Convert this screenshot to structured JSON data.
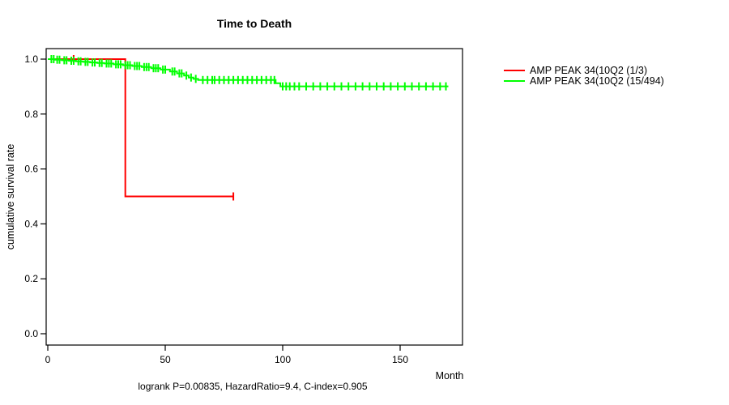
{
  "chart": {
    "title": "Time to Death",
    "xlabel": "Month",
    "ylabel": "cumulative survival rate",
    "stats_caption": "logrank P=0.00835, HazardRatio=9.4, C-index=0.905"
  },
  "legend": {
    "items": [
      {
        "label": "AMP PEAK 34(10Q2 (1/3)",
        "color": "#ff0000"
      },
      {
        "label": "AMP PEAK 34(10Q2 (15/494)",
        "color": "#00ff00"
      }
    ]
  },
  "chart_data": {
    "type": "line",
    "subtype": "kaplan-meier-step",
    "title": "Time to Death",
    "xlabel": "Month",
    "ylabel": "cumulative survival rate",
    "xlim": [
      0,
      177
    ],
    "ylim": [
      0.0,
      1.0
    ],
    "x_ticks": [
      0,
      50,
      100,
      150
    ],
    "x_tick_labels": [
      "0",
      "50",
      "100",
      "150"
    ],
    "y_ticks": [
      1.0,
      0.8,
      0.6,
      0.4,
      0.2,
      0.0
    ],
    "y_tick_labels": [
      "1.0",
      "0.8",
      "0.6",
      "0.4",
      "0.2",
      "0.0"
    ],
    "grid": false,
    "legend_position": "right-outside",
    "annotation": "logrank P=0.00835, HazardRatio=9.4, C-index=0.905",
    "series": [
      {
        "name": "AMP PEAK 34(10Q2 (1/3)",
        "events": "1/3",
        "color": "#ff0000",
        "steps": [
          [
            0,
            1.0
          ],
          [
            33,
            1.0
          ],
          [
            33,
            0.5
          ],
          [
            79,
            0.5
          ]
        ],
        "censors": [
          [
            11,
            1.0
          ],
          [
            79,
            0.5
          ]
        ]
      },
      {
        "name": "AMP PEAK 34(10Q2 (15/494)",
        "events": "15/494",
        "color": "#00ff00",
        "steps": [
          [
            0,
            1.0
          ],
          [
            3,
            0.998
          ],
          [
            6,
            0.996
          ],
          [
            9,
            0.994
          ],
          [
            12,
            0.992
          ],
          [
            15,
            0.99
          ],
          [
            18,
            0.988
          ],
          [
            21,
            0.986
          ],
          [
            24,
            0.984
          ],
          [
            28,
            0.981
          ],
          [
            32,
            0.978
          ],
          [
            36,
            0.975
          ],
          [
            40,
            0.971
          ],
          [
            44,
            0.967
          ],
          [
            48,
            0.962
          ],
          [
            52,
            0.955
          ],
          [
            55,
            0.948
          ],
          [
            58,
            0.94
          ],
          [
            60,
            0.933
          ],
          [
            62,
            0.928
          ],
          [
            64,
            0.924
          ],
          [
            97,
            0.912
          ],
          [
            99,
            0.901
          ],
          [
            170.5,
            0.901
          ]
        ],
        "censors": [
          [
            1.5,
            1.0
          ],
          [
            2.5,
            1.0
          ],
          [
            4,
            0.998
          ],
          [
            5,
            0.998
          ],
          [
            7,
            0.996
          ],
          [
            8,
            0.996
          ],
          [
            10,
            0.994
          ],
          [
            11,
            0.994
          ],
          [
            13,
            0.992
          ],
          [
            14,
            0.992
          ],
          [
            16,
            0.99
          ],
          [
            17,
            0.99
          ],
          [
            19,
            0.988
          ],
          [
            20,
            0.988
          ],
          [
            22,
            0.986
          ],
          [
            23,
            0.986
          ],
          [
            25,
            0.984
          ],
          [
            26,
            0.984
          ],
          [
            27,
            0.984
          ],
          [
            29,
            0.981
          ],
          [
            30,
            0.981
          ],
          [
            31,
            0.981
          ],
          [
            33,
            0.978
          ],
          [
            34,
            0.978
          ],
          [
            35,
            0.978
          ],
          [
            37,
            0.975
          ],
          [
            38,
            0.975
          ],
          [
            39,
            0.975
          ],
          [
            41,
            0.971
          ],
          [
            42,
            0.971
          ],
          [
            43,
            0.971
          ],
          [
            45,
            0.967
          ],
          [
            46,
            0.967
          ],
          [
            47,
            0.967
          ],
          [
            49,
            0.962
          ],
          [
            50,
            0.962
          ],
          [
            53,
            0.955
          ],
          [
            54,
            0.955
          ],
          [
            56,
            0.948
          ],
          [
            57,
            0.948
          ],
          [
            59,
            0.94
          ],
          [
            61,
            0.933
          ],
          [
            63,
            0.928
          ],
          [
            66,
            0.924
          ],
          [
            68,
            0.924
          ],
          [
            70,
            0.924
          ],
          [
            71,
            0.924
          ],
          [
            73,
            0.924
          ],
          [
            75,
            0.924
          ],
          [
            77,
            0.924
          ],
          [
            79,
            0.924
          ],
          [
            81,
            0.924
          ],
          [
            83,
            0.924
          ],
          [
            85,
            0.924
          ],
          [
            87,
            0.924
          ],
          [
            89,
            0.924
          ],
          [
            91,
            0.924
          ],
          [
            93,
            0.924
          ],
          [
            95,
            0.924
          ],
          [
            96.5,
            0.924
          ],
          [
            100,
            0.901
          ],
          [
            101.5,
            0.901
          ],
          [
            103,
            0.901
          ],
          [
            105,
            0.901
          ],
          [
            107,
            0.901
          ],
          [
            110,
            0.901
          ],
          [
            113,
            0.901
          ],
          [
            116,
            0.901
          ],
          [
            119,
            0.901
          ],
          [
            122,
            0.901
          ],
          [
            125,
            0.901
          ],
          [
            128,
            0.901
          ],
          [
            131,
            0.901
          ],
          [
            134,
            0.901
          ],
          [
            137,
            0.901
          ],
          [
            140,
            0.901
          ],
          [
            143,
            0.901
          ],
          [
            146,
            0.901
          ],
          [
            149,
            0.901
          ],
          [
            152,
            0.901
          ],
          [
            155,
            0.901
          ],
          [
            158,
            0.901
          ],
          [
            161,
            0.901
          ],
          [
            164,
            0.901
          ],
          [
            167,
            0.901
          ],
          [
            169.5,
            0.901
          ]
        ]
      }
    ]
  }
}
